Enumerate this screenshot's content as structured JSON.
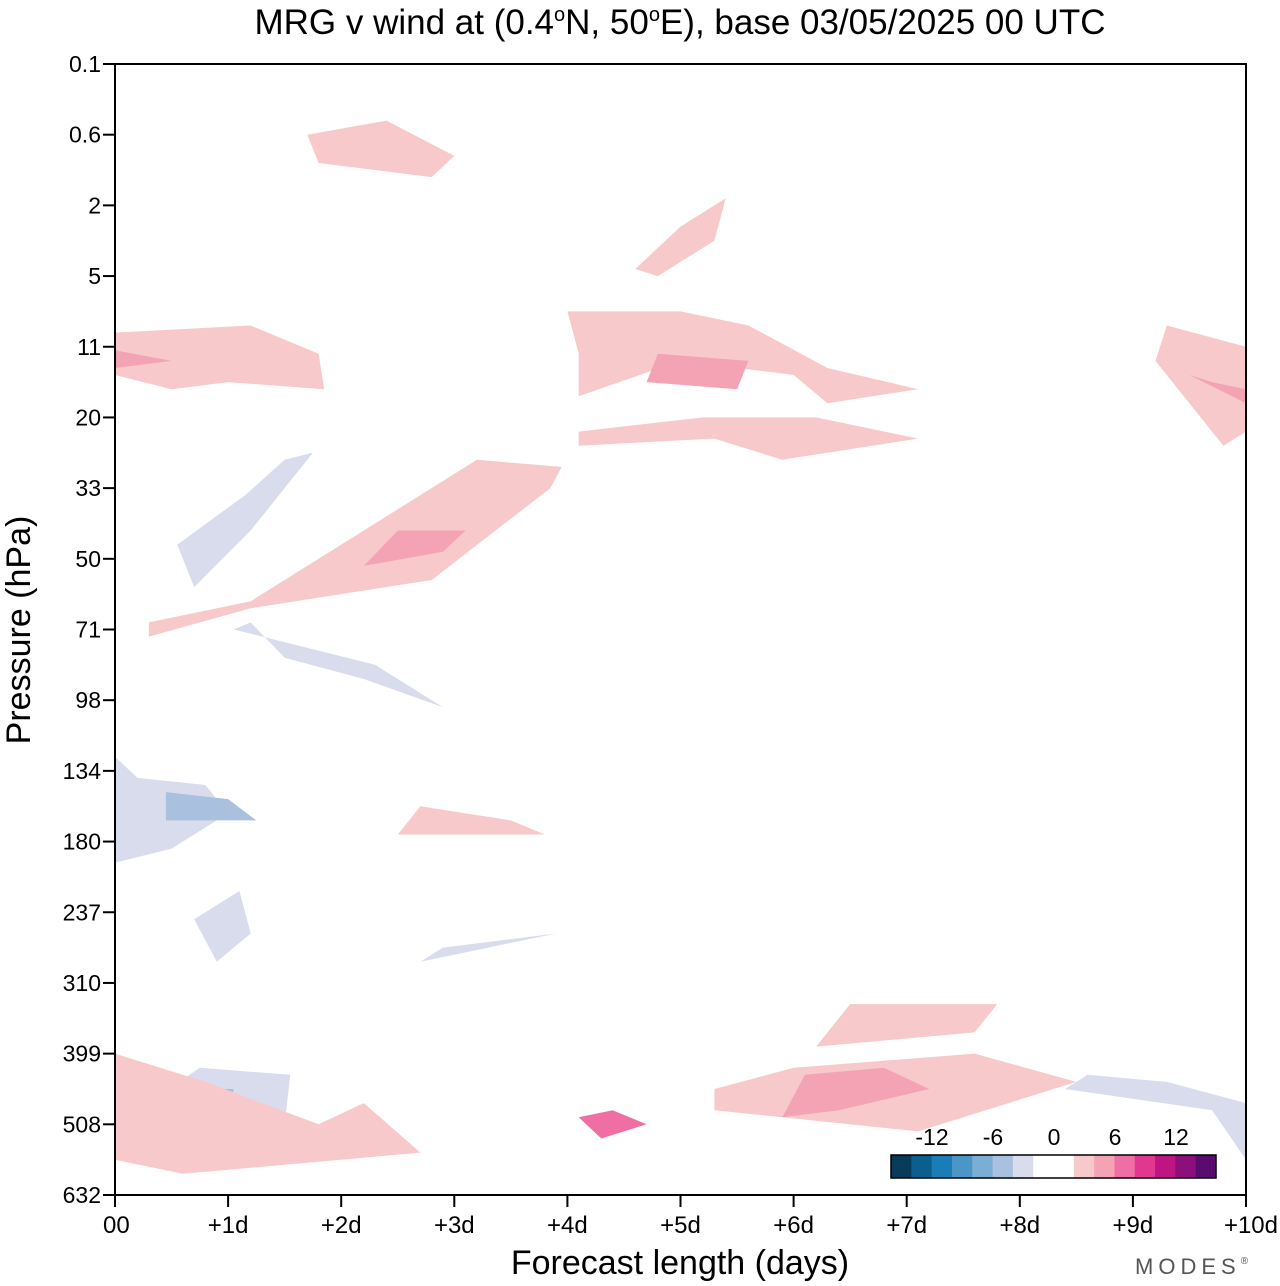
{
  "chart_data": {
    "type": "contour",
    "title": "MRG v wind at (0.4°N, 50°E),  base 03/05/2025  00 UTC",
    "title_parts": {
      "prefix": "MRG v wind at (0.4",
      "deg1": "o",
      "mid": "N, 50",
      "deg2": "o",
      "suffix": "E),  base 03/05/2025  00 UTC"
    },
    "xlabel": "Forecast length (days)",
    "ylabel": "Pressure (hPa)",
    "x_ticks": [
      "00",
      "+1d",
      "+2d",
      "+3d",
      "+4d",
      "+5d",
      "+6d",
      "+7d",
      "+8d",
      "+9d",
      "+10d"
    ],
    "xlim": [
      0,
      10
    ],
    "y_ticks": [
      "0.1",
      "0.6",
      "2",
      "5",
      "11",
      "20",
      "33",
      "50",
      "71",
      "98",
      "134",
      "180",
      "237",
      "310",
      "399",
      "508",
      "632"
    ],
    "y_direction": "pressure decreasing upward",
    "colorbar": {
      "tick_labels": [
        "-12",
        "-6",
        "0",
        "6",
        "12"
      ],
      "colors": [
        "#083a5a",
        "#0b5f8f",
        "#1a7db8",
        "#4b96c6",
        "#7aaed4",
        "#a9c1de",
        "#d9dcec",
        "#ffffff",
        "#ffffff",
        "#f8c9cb",
        "#f4a3b5",
        "#ef6fa5",
        "#e1378f",
        "#bf1583",
        "#8c0f7c",
        "#5a0c6e"
      ],
      "position": "bottom-right"
    },
    "brand": "MODES",
    "brand_mark": "®",
    "regions": [
      {
        "sign": "neg",
        "level": 1,
        "x": [
          0.0,
          0.2,
          0.8,
          1.0,
          0.5,
          0.0
        ],
        "y": [
          9.8,
          10.1,
          10.2,
          10.6,
          11.1,
          11.3
        ]
      },
      {
        "sign": "neg",
        "level": 2,
        "x": [
          0.45,
          1.0,
          1.25,
          0.45
        ],
        "y": [
          10.3,
          10.4,
          10.7,
          10.7
        ]
      },
      {
        "sign": "neg",
        "level": 1,
        "x": [
          1.05,
          2.3,
          2.9,
          2.2,
          1.5,
          1.2
        ],
        "y": [
          8.0,
          8.5,
          9.1,
          8.7,
          8.4,
          7.9
        ]
      },
      {
        "sign": "neg",
        "level": 1,
        "x": [
          0.55,
          1.15,
          1.5,
          1.75,
          1.2,
          0.7
        ],
        "y": [
          6.8,
          6.1,
          5.6,
          5.5,
          6.6,
          7.4
        ]
      },
      {
        "sign": "neg",
        "level": 1,
        "x": [
          0.7,
          1.1,
          1.2,
          0.9
        ],
        "y": [
          12.1,
          11.7,
          12.3,
          12.7
        ]
      },
      {
        "sign": "neg",
        "level": 1,
        "x": [
          0.3,
          1.5,
          1.55,
          0.75,
          0.3
        ],
        "y": [
          14.5,
          15.0,
          14.3,
          14.2,
          14.7
        ]
      },
      {
        "sign": "neg",
        "level": 2,
        "x": [
          0.45,
          1.0,
          1.05,
          0.45
        ],
        "y": [
          14.7,
          14.8,
          14.5,
          14.5
        ]
      },
      {
        "sign": "pos",
        "level": 1,
        "x": [
          0.0,
          0.5,
          1.0,
          1.85,
          1.8,
          1.2,
          0.0
        ],
        "y": [
          4.4,
          4.6,
          4.5,
          4.6,
          4.1,
          3.7,
          3.8
        ]
      },
      {
        "sign": "pos",
        "level": 2,
        "x": [
          0.0,
          0.5,
          0.0
        ],
        "y": [
          4.05,
          4.2,
          4.3
        ]
      },
      {
        "sign": "pos",
        "level": 1,
        "x": [
          0.3,
          1.2,
          2.8,
          3.85,
          3.95,
          3.2,
          1.2,
          0.3
        ],
        "y": [
          8.1,
          7.7,
          7.3,
          6.0,
          5.7,
          5.6,
          7.6,
          7.9
        ]
      },
      {
        "sign": "pos",
        "level": 2,
        "x": [
          2.2,
          2.9,
          3.1,
          2.5
        ],
        "y": [
          7.1,
          6.9,
          6.6,
          6.6
        ]
      },
      {
        "sign": "pos",
        "level": 1,
        "x": [
          4.1,
          5.3,
          5.9,
          7.1,
          6.2,
          5.2,
          4.1
        ],
        "y": [
          5.4,
          5.3,
          5.6,
          5.3,
          5.0,
          5.0,
          5.2
        ]
      },
      {
        "sign": "pos",
        "level": 1,
        "x": [
          4.1,
          5.0,
          6.0,
          6.3,
          7.1,
          6.3,
          5.6,
          5.0,
          4.0,
          4.1
        ],
        "y": [
          4.7,
          4.2,
          4.4,
          4.8,
          4.6,
          4.3,
          3.7,
          3.5,
          3.5,
          4.1
        ]
      },
      {
        "sign": "pos",
        "level": 2,
        "x": [
          4.7,
          5.5,
          5.6,
          4.8
        ],
        "y": [
          4.5,
          4.6,
          4.2,
          4.1
        ]
      },
      {
        "sign": "pos",
        "level": 1,
        "x": [
          4.6,
          5.0,
          5.4,
          5.3,
          4.8
        ],
        "y": [
          2.9,
          2.3,
          1.9,
          2.5,
          3.0
        ]
      },
      {
        "sign": "pos",
        "level": 1,
        "x": [
          1.7,
          2.4,
          3.0,
          2.8,
          1.8
        ],
        "y": [
          1.0,
          0.8,
          1.3,
          1.6,
          1.4
        ]
      },
      {
        "sign": "pos",
        "level": 1,
        "x": [
          9.3,
          10.0,
          10.0,
          9.8,
          9.2
        ],
        "y": [
          3.7,
          4.0,
          5.2,
          5.4,
          4.2
        ]
      },
      {
        "sign": "pos",
        "level": 2,
        "x": [
          9.5,
          10.0,
          10.0,
          9.7
        ],
        "y": [
          4.4,
          4.8,
          4.6,
          4.5
        ]
      },
      {
        "sign": "pos",
        "level": 1,
        "x": [
          2.7,
          3.5,
          3.8,
          2.5
        ],
        "y": [
          10.5,
          10.7,
          10.9,
          10.9
        ]
      },
      {
        "sign": "pos",
        "level": 1,
        "x": [
          5.3,
          7.1,
          8.5,
          7.6,
          6.0,
          5.3
        ],
        "y": [
          14.8,
          15.1,
          14.4,
          14.0,
          14.2,
          14.5
        ]
      },
      {
        "sign": "pos",
        "level": 2,
        "x": [
          5.9,
          6.4,
          7.2,
          6.8,
          6.1
        ],
        "y": [
          14.9,
          14.8,
          14.5,
          14.2,
          14.3
        ]
      },
      {
        "sign": "pos",
        "level": 3,
        "x": [
          4.3,
          4.7,
          4.4,
          4.1
        ],
        "y": [
          15.2,
          15.0,
          14.8,
          14.9
        ]
      },
      {
        "sign": "pos",
        "level": 1,
        "x": [
          0.0,
          0.8,
          1.8,
          2.2,
          2.7,
          2.0,
          0.6,
          0.0
        ],
        "y": [
          14.0,
          14.4,
          15.0,
          14.7,
          15.4,
          15.5,
          15.7,
          15.5
        ]
      },
      {
        "sign": "neg",
        "level": 1,
        "x": [
          8.4,
          9.7,
          10.0,
          10.0,
          9.3,
          8.6
        ],
        "y": [
          14.5,
          14.8,
          15.5,
          14.7,
          14.4,
          14.3
        ]
      },
      {
        "sign": "neg",
        "level": 1,
        "x": [
          2.7,
          3.3,
          3.9,
          2.9
        ],
        "y": [
          12.7,
          12.5,
          12.3,
          12.5
        ]
      },
      {
        "sign": "pos",
        "level": 1,
        "x": [
          6.2,
          7.6,
          7.8,
          6.5
        ],
        "y": [
          13.9,
          13.7,
          13.3,
          13.3
        ]
      }
    ]
  }
}
